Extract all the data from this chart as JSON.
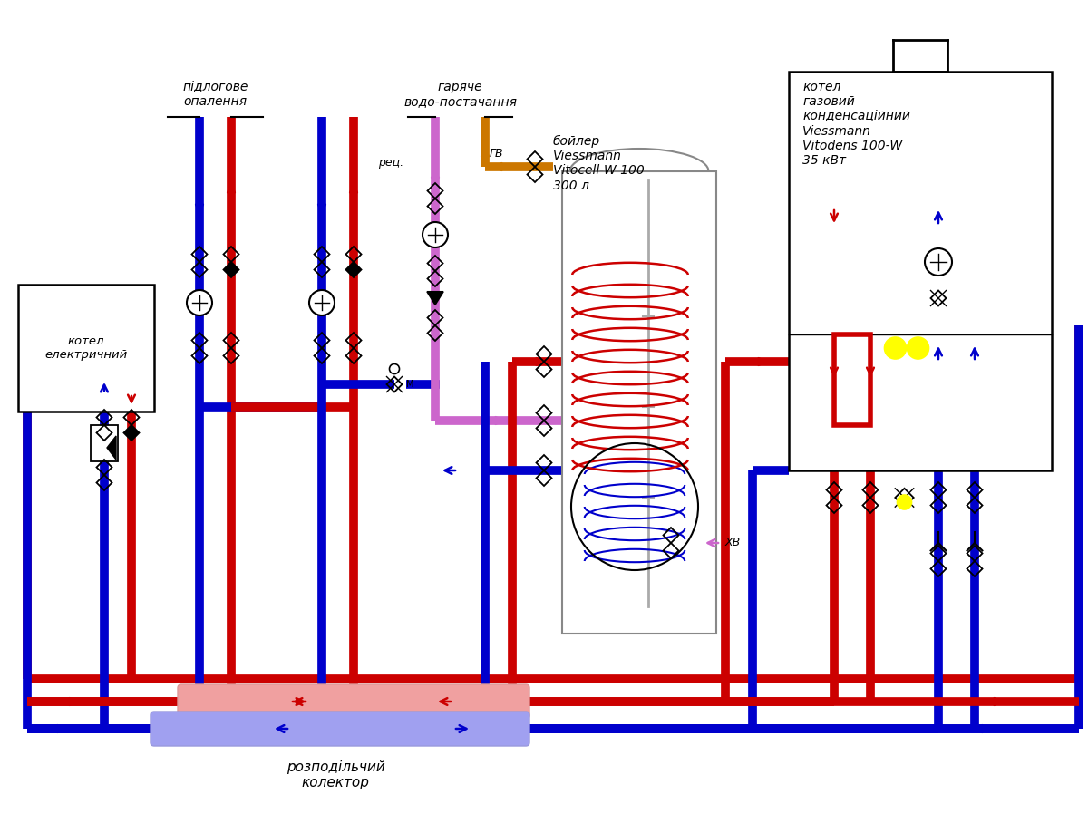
{
  "bg_color": "#ffffff",
  "pipe_lw": 7,
  "pipe_red": "#cc0000",
  "pipe_blue": "#0000cc",
  "pipe_purple": "#cc66cc",
  "pipe_orange": "#cc7700",
  "collector_red": "#f0a0a0",
  "collector_blue": "#a0a0f0",
  "labels": {
    "pidlogove": "підлогове\nопалення",
    "garyache": "гаряче\nводо-постачання",
    "rec": "рец.",
    "gv": "ГВ",
    "boyler": "бойлер\nViessmann\nVitocell-W 100\n300 л",
    "kotel_gaz": "котел\nгазовий\nконденсаційний\nViessmann\nVitodens 100-W\n35 кВт",
    "kotel_el": "котел\nелектричний",
    "kv": "ХВ",
    "kollektor": "розподільчий\nколектор"
  }
}
